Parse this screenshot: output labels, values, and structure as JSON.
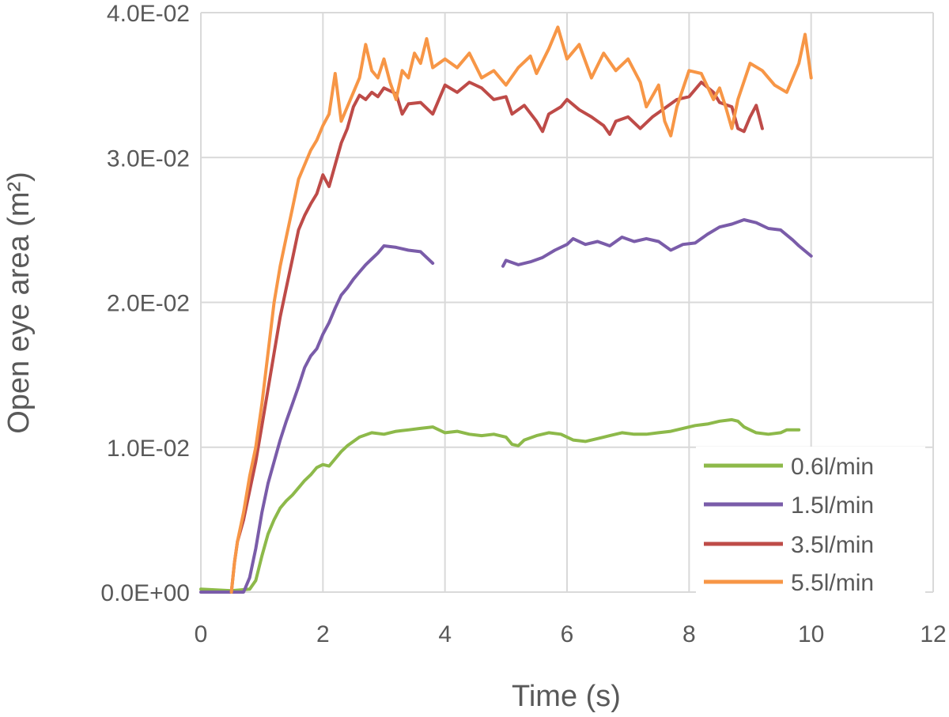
{
  "chart_data": {
    "type": "line",
    "xlabel": "Time (s)",
    "ylabel": "Open eye area (m²)",
    "xlim": [
      0,
      12
    ],
    "ylim": [
      0,
      0.04
    ],
    "x_ticks": [
      "0",
      "2",
      "4",
      "6",
      "8",
      "10",
      "12"
    ],
    "y_ticks": [
      "0.0E+00",
      "1.0E-02",
      "2.0E-02",
      "3.0E-02",
      "4.0E-02"
    ],
    "grid": true,
    "legend_position": "bottom-right",
    "series": [
      {
        "name": "0.6l/min",
        "color": "#8db94a",
        "segments": [
          [
            [
              0,
              0.0002
            ],
            [
              0.5,
              0.0001
            ],
            [
              0.8,
              0.0002
            ],
            [
              0.9,
              0.0008
            ],
            [
              1.0,
              0.0025
            ],
            [
              1.1,
              0.004
            ],
            [
              1.2,
              0.005
            ],
            [
              1.3,
              0.0058
            ],
            [
              1.4,
              0.0063
            ],
            [
              1.5,
              0.0067
            ],
            [
              1.6,
              0.0072
            ],
            [
              1.7,
              0.0077
            ],
            [
              1.8,
              0.0081
            ],
            [
              1.9,
              0.0086
            ],
            [
              2.0,
              0.0088
            ],
            [
              2.1,
              0.0087
            ],
            [
              2.2,
              0.0092
            ],
            [
              2.3,
              0.0097
            ],
            [
              2.4,
              0.0101
            ],
            [
              2.5,
              0.0104
            ],
            [
              2.6,
              0.0107
            ],
            [
              2.8,
              0.011
            ],
            [
              3.0,
              0.0109
            ],
            [
              3.2,
              0.0111
            ],
            [
              3.4,
              0.0112
            ],
            [
              3.6,
              0.0113
            ],
            [
              3.8,
              0.0114
            ],
            [
              4.0,
              0.011
            ],
            [
              4.2,
              0.0111
            ],
            [
              4.4,
              0.0109
            ],
            [
              4.6,
              0.0108
            ],
            [
              4.8,
              0.0109
            ],
            [
              5.0,
              0.0107
            ],
            [
              5.1,
              0.0102
            ],
            [
              5.2,
              0.0101
            ],
            [
              5.3,
              0.0105
            ],
            [
              5.5,
              0.0108
            ],
            [
              5.7,
              0.011
            ],
            [
              5.9,
              0.0109
            ],
            [
              6.1,
              0.0105
            ],
            [
              6.3,
              0.0104
            ],
            [
              6.5,
              0.0106
            ],
            [
              6.7,
              0.0108
            ],
            [
              6.9,
              0.011
            ],
            [
              7.1,
              0.0109
            ],
            [
              7.3,
              0.0109
            ],
            [
              7.5,
              0.011
            ],
            [
              7.7,
              0.0111
            ],
            [
              7.9,
              0.0113
            ],
            [
              8.1,
              0.0115
            ],
            [
              8.3,
              0.0116
            ],
            [
              8.5,
              0.0118
            ],
            [
              8.7,
              0.0119
            ],
            [
              8.8,
              0.0118
            ],
            [
              8.9,
              0.0114
            ],
            [
              9.0,
              0.0112
            ],
            [
              9.1,
              0.011
            ],
            [
              9.3,
              0.0109
            ],
            [
              9.5,
              0.011
            ],
            [
              9.6,
              0.0112
            ],
            [
              9.8,
              0.0112
            ]
          ]
        ]
      },
      {
        "name": "1.5l/min",
        "color": "#7a5ca9",
        "segments": [
          [
            [
              0,
              0.0
            ],
            [
              0.6,
              0.0
            ],
            [
              0.7,
              0.0
            ],
            [
              0.8,
              0.001
            ],
            [
              0.9,
              0.003
            ],
            [
              1.0,
              0.0055
            ],
            [
              1.1,
              0.0075
            ],
            [
              1.2,
              0.009
            ],
            [
              1.3,
              0.0105
            ],
            [
              1.4,
              0.0118
            ],
            [
              1.5,
              0.013
            ],
            [
              1.6,
              0.0142
            ],
            [
              1.7,
              0.0155
            ],
            [
              1.8,
              0.0163
            ],
            [
              1.9,
              0.0168
            ],
            [
              2.0,
              0.0178
            ],
            [
              2.1,
              0.0186
            ],
            [
              2.2,
              0.0196
            ],
            [
              2.3,
              0.0205
            ],
            [
              2.4,
              0.021
            ],
            [
              2.5,
              0.0216
            ],
            [
              2.6,
              0.0221
            ],
            [
              2.7,
              0.0226
            ],
            [
              2.8,
              0.023
            ],
            [
              2.9,
              0.0234
            ],
            [
              3.0,
              0.0239
            ],
            [
              3.2,
              0.0238
            ],
            [
              3.4,
              0.0236
            ],
            [
              3.6,
              0.0235
            ],
            [
              3.8,
              0.0227
            ]
          ],
          [
            [
              4.95,
              0.0225
            ],
            [
              5.0,
              0.0229
            ],
            [
              5.2,
              0.0226
            ],
            [
              5.4,
              0.0228
            ],
            [
              5.6,
              0.0231
            ],
            [
              5.8,
              0.0236
            ],
            [
              6.0,
              0.024
            ],
            [
              6.1,
              0.0244
            ],
            [
              6.3,
              0.024
            ],
            [
              6.5,
              0.0242
            ],
            [
              6.7,
              0.0239
            ],
            [
              6.9,
              0.0245
            ],
            [
              7.1,
              0.0242
            ],
            [
              7.3,
              0.0244
            ],
            [
              7.5,
              0.0242
            ],
            [
              7.7,
              0.0236
            ],
            [
              7.9,
              0.024
            ],
            [
              8.1,
              0.0241
            ],
            [
              8.3,
              0.0247
            ],
            [
              8.5,
              0.0252
            ],
            [
              8.7,
              0.0254
            ],
            [
              8.9,
              0.0257
            ],
            [
              9.1,
              0.0255
            ],
            [
              9.3,
              0.0251
            ],
            [
              9.5,
              0.025
            ],
            [
              9.7,
              0.0243
            ],
            [
              9.8,
              0.0239
            ],
            [
              10.0,
              0.0232
            ]
          ]
        ]
      },
      {
        "name": "3.5l/min",
        "color": "#be4b48",
        "segments": [
          [
            [
              0.5,
              0.0
            ],
            [
              0.55,
              0.002
            ],
            [
              0.6,
              0.0035
            ],
            [
              0.7,
              0.005
            ],
            [
              0.8,
              0.007
            ],
            [
              0.9,
              0.009
            ],
            [
              1.0,
              0.0115
            ],
            [
              1.1,
              0.014
            ],
            [
              1.2,
              0.0165
            ],
            [
              1.3,
              0.019
            ],
            [
              1.4,
              0.021
            ],
            [
              1.5,
              0.023
            ],
            [
              1.6,
              0.025
            ],
            [
              1.7,
              0.026
            ],
            [
              1.8,
              0.0268
            ],
            [
              1.9,
              0.0275
            ],
            [
              2.0,
              0.0288
            ],
            [
              2.1,
              0.028
            ],
            [
              2.2,
              0.0295
            ],
            [
              2.3,
              0.031
            ],
            [
              2.4,
              0.032
            ],
            [
              2.5,
              0.0335
            ],
            [
              2.6,
              0.0343
            ],
            [
              2.7,
              0.034
            ],
            [
              2.8,
              0.0345
            ],
            [
              2.9,
              0.0342
            ],
            [
              3.0,
              0.0348
            ],
            [
              3.2,
              0.0344
            ],
            [
              3.3,
              0.033
            ],
            [
              3.4,
              0.0337
            ],
            [
              3.6,
              0.0338
            ],
            [
              3.8,
              0.033
            ],
            [
              3.9,
              0.034
            ],
            [
              4.0,
              0.035
            ],
            [
              4.2,
              0.0345
            ],
            [
              4.4,
              0.0352
            ],
            [
              4.6,
              0.0348
            ],
            [
              4.8,
              0.034
            ],
            [
              5.0,
              0.0342
            ],
            [
              5.1,
              0.033
            ],
            [
              5.3,
              0.0336
            ],
            [
              5.5,
              0.0325
            ],
            [
              5.6,
              0.0318
            ],
            [
              5.7,
              0.033
            ],
            [
              5.9,
              0.0335
            ],
            [
              6.0,
              0.034
            ],
            [
              6.2,
              0.0333
            ],
            [
              6.4,
              0.0328
            ],
            [
              6.6,
              0.0322
            ],
            [
              6.7,
              0.0316
            ],
            [
              6.8,
              0.0325
            ],
            [
              7.0,
              0.0328
            ],
            [
              7.2,
              0.032
            ],
            [
              7.4,
              0.0328
            ],
            [
              7.6,
              0.0334
            ],
            [
              7.8,
              0.034
            ],
            [
              8.0,
              0.0342
            ],
            [
              8.2,
              0.0352
            ],
            [
              8.4,
              0.0345
            ],
            [
              8.5,
              0.0338
            ],
            [
              8.7,
              0.0335
            ],
            [
              8.8,
              0.032
            ],
            [
              8.9,
              0.0318
            ],
            [
              9.0,
              0.0328
            ],
            [
              9.1,
              0.0336
            ],
            [
              9.2,
              0.032
            ]
          ]
        ]
      },
      {
        "name": "5.5l/min",
        "color": "#f79646",
        "segments": [
          [
            [
              0.5,
              0.0
            ],
            [
              0.55,
              0.002
            ],
            [
              0.6,
              0.0035
            ],
            [
              0.7,
              0.0055
            ],
            [
              0.8,
              0.008
            ],
            [
              0.9,
              0.01
            ],
            [
              1.0,
              0.013
            ],
            [
              1.1,
              0.0165
            ],
            [
              1.2,
              0.02
            ],
            [
              1.3,
              0.0225
            ],
            [
              1.4,
              0.0245
            ],
            [
              1.5,
              0.0265
            ],
            [
              1.6,
              0.0285
            ],
            [
              1.7,
              0.0295
            ],
            [
              1.8,
              0.0305
            ],
            [
              1.9,
              0.0312
            ],
            [
              2.0,
              0.0322
            ],
            [
              2.1,
              0.033
            ],
            [
              2.2,
              0.0358
            ],
            [
              2.3,
              0.0325
            ],
            [
              2.4,
              0.0335
            ],
            [
              2.5,
              0.0345
            ],
            [
              2.6,
              0.0355
            ],
            [
              2.7,
              0.0378
            ],
            [
              2.8,
              0.036
            ],
            [
              2.9,
              0.0355
            ],
            [
              3.0,
              0.0368
            ],
            [
              3.1,
              0.0352
            ],
            [
              3.2,
              0.034
            ],
            [
              3.3,
              0.036
            ],
            [
              3.4,
              0.0355
            ],
            [
              3.5,
              0.0372
            ],
            [
              3.6,
              0.0365
            ],
            [
              3.7,
              0.0382
            ],
            [
              3.8,
              0.0362
            ],
            [
              4.0,
              0.0368
            ],
            [
              4.2,
              0.0362
            ],
            [
              4.4,
              0.0372
            ],
            [
              4.6,
              0.0355
            ],
            [
              4.8,
              0.036
            ],
            [
              5.0,
              0.035
            ],
            [
              5.2,
              0.0362
            ],
            [
              5.4,
              0.037
            ],
            [
              5.5,
              0.0358
            ],
            [
              5.7,
              0.0375
            ],
            [
              5.85,
              0.039
            ],
            [
              6.0,
              0.0368
            ],
            [
              6.2,
              0.0378
            ],
            [
              6.4,
              0.0355
            ],
            [
              6.6,
              0.0372
            ],
            [
              6.8,
              0.036
            ],
            [
              7.0,
              0.0368
            ],
            [
              7.2,
              0.0352
            ],
            [
              7.3,
              0.0335
            ],
            [
              7.5,
              0.035
            ],
            [
              7.6,
              0.0325
            ],
            [
              7.7,
              0.0315
            ],
            [
              7.8,
              0.0335
            ],
            [
              8.0,
              0.036
            ],
            [
              8.2,
              0.0358
            ],
            [
              8.4,
              0.034
            ],
            [
              8.5,
              0.0348
            ],
            [
              8.6,
              0.0335
            ],
            [
              8.7,
              0.032
            ],
            [
              8.8,
              0.034
            ],
            [
              9.0,
              0.0365
            ],
            [
              9.2,
              0.036
            ],
            [
              9.4,
              0.035
            ],
            [
              9.6,
              0.0345
            ],
            [
              9.8,
              0.0365
            ],
            [
              9.9,
              0.0385
            ],
            [
              10.0,
              0.0355
            ]
          ]
        ]
      }
    ]
  }
}
